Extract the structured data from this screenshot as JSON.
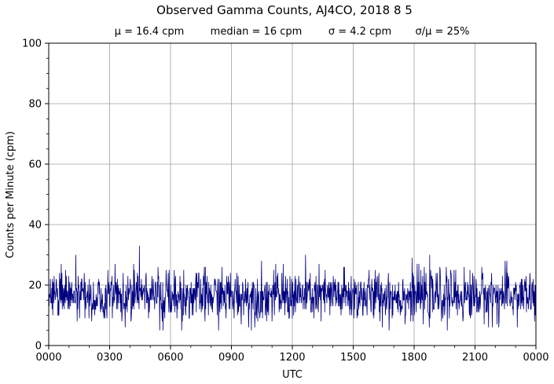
{
  "chart_data": {
    "type": "line",
    "title": "Observed Gamma Counts, AJ4CO, 2018 8 5",
    "stats": [
      "μ = 16.4 cpm",
      "median = 16 cpm",
      "σ = 4.2 cpm",
      "σ/μ = 25%"
    ],
    "xlabel": "UTC",
    "ylabel": "Counts per Minute (cpm)",
    "x_ticks": [
      "0000",
      "0300",
      "0600",
      "0900",
      "1200",
      "1500",
      "1800",
      "2100",
      "0000"
    ],
    "y_ticks": [
      "0",
      "20",
      "40",
      "60",
      "80",
      "100"
    ],
    "xlim_hours": [
      0,
      24
    ],
    "ylim": [
      0,
      100
    ],
    "grid": true,
    "sampling": "one sample per minute",
    "series": [
      {
        "color": "#000080",
        "mean": 16.4,
        "median": 16,
        "std": 4.2,
        "min": 5,
        "max": 33
      }
    ]
  }
}
